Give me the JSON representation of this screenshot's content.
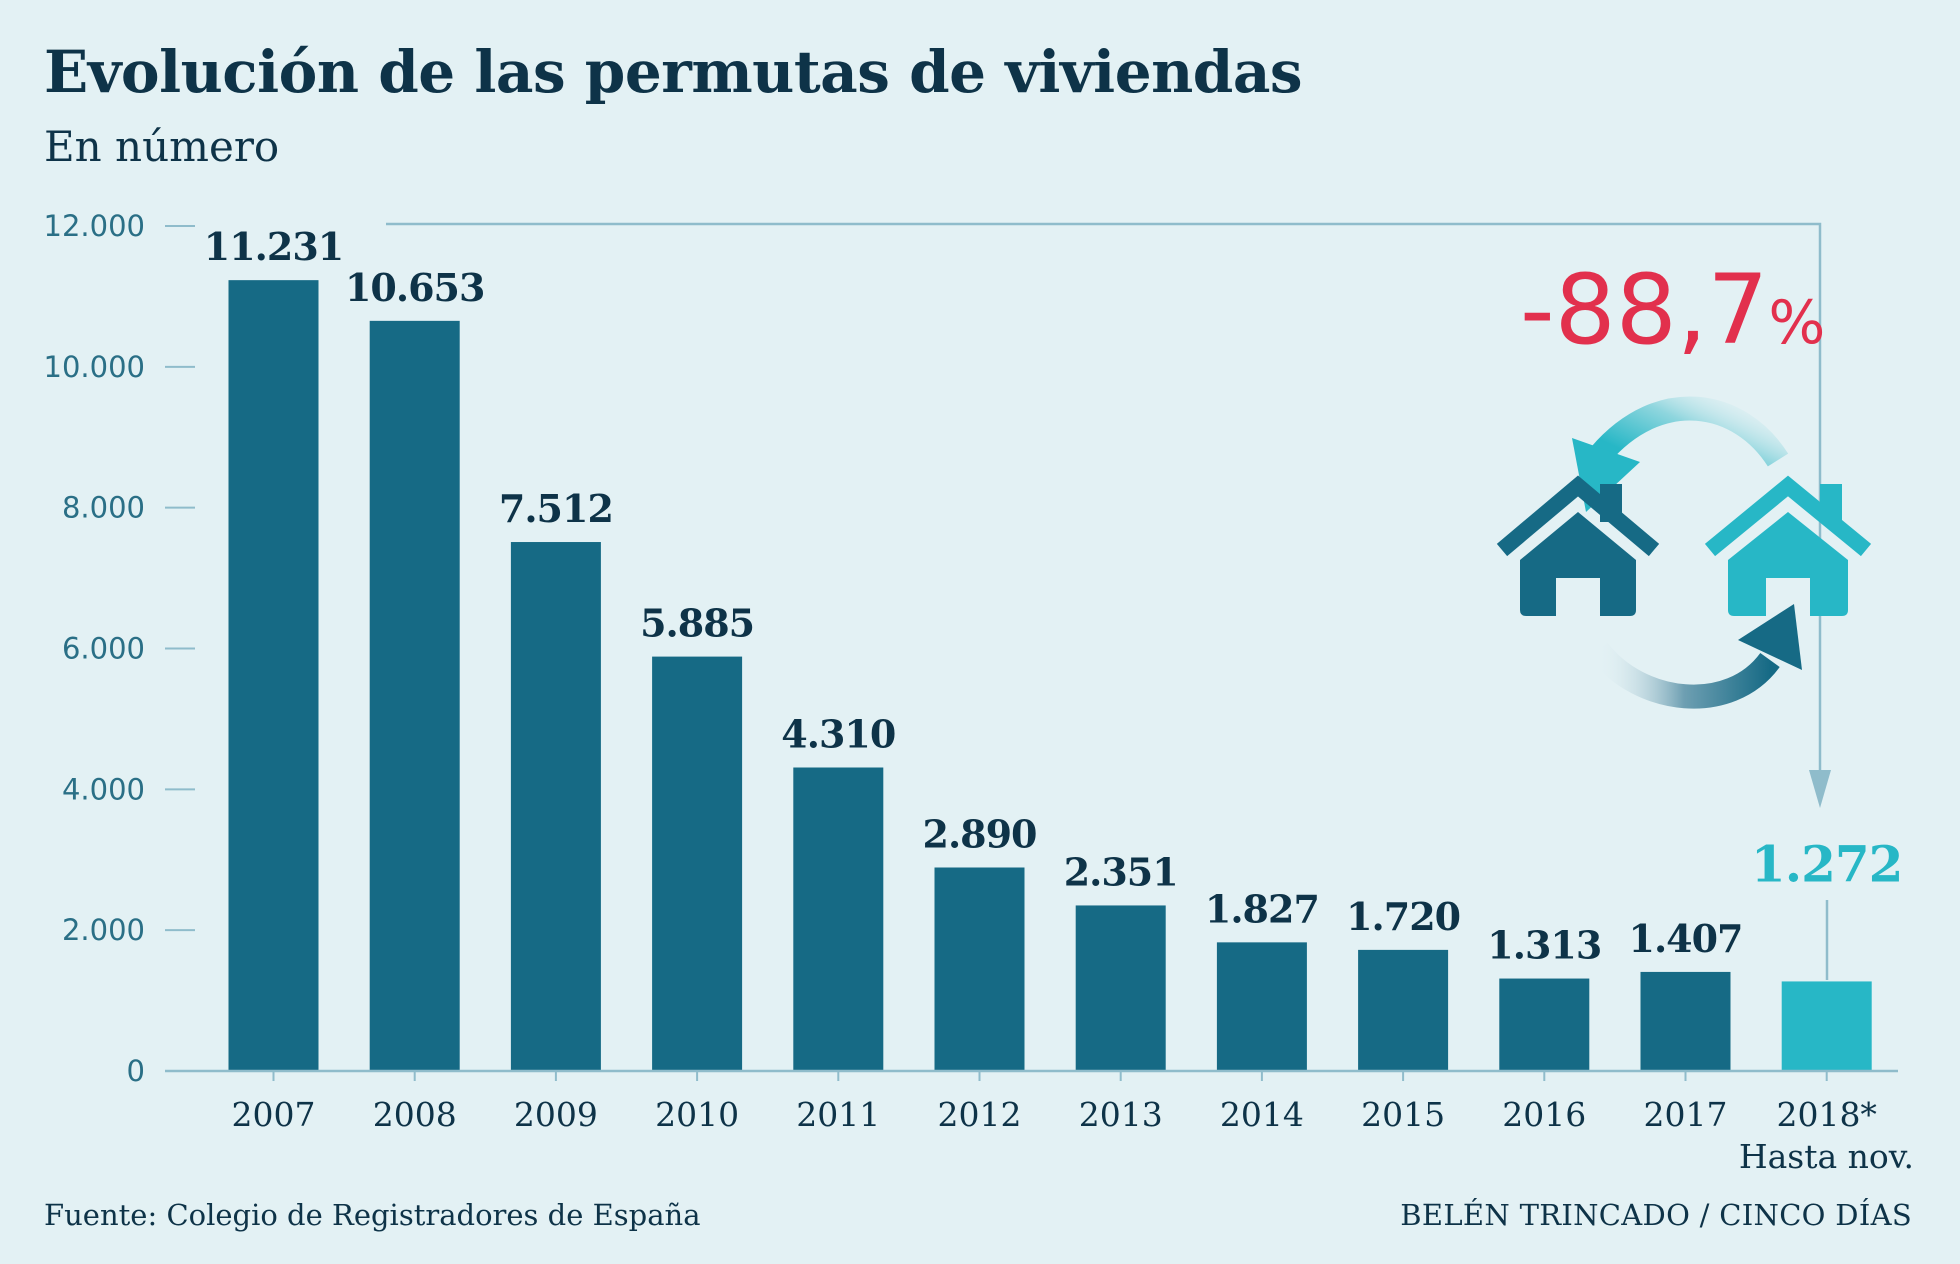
{
  "title": "Evolución de las permutas de viviendas",
  "subtitle": "En número",
  "footer": {
    "source": "Fuente: Colegio de Registradores de España",
    "credit": "BELÉN TRINCADO / CINCO DÍAS"
  },
  "annotation": {
    "change_number": "-88,7",
    "change_unit": "%",
    "icon": "house-exchange-icon"
  },
  "colors": {
    "bar": "#166a85",
    "highlight": "#27b7c6",
    "text": "#0e3348",
    "change": "#e2304d",
    "background": "#e3f1f4"
  },
  "chart_data": {
    "type": "bar",
    "title": "Evolución de las permutas de viviendas",
    "subtitle": "En número",
    "categories": [
      "2007",
      "2008",
      "2009",
      "2010",
      "2011",
      "2012",
      "2013",
      "2014",
      "2015",
      "2016",
      "2017",
      "2018*"
    ],
    "category_note": "Hasta nov.",
    "values": [
      11231,
      10653,
      7512,
      5885,
      4310,
      2890,
      2351,
      1827,
      1720,
      1313,
      1407,
      1272
    ],
    "value_labels": [
      "11.231",
      "10.653",
      "7.512",
      "5.885",
      "4.310",
      "2.890",
      "2.351",
      "1.827",
      "1.720",
      "1.313",
      "1.407",
      "1.272"
    ],
    "highlight_index": 11,
    "yticks": [
      0,
      2000,
      4000,
      6000,
      8000,
      10000,
      12000
    ],
    "ytick_labels": [
      "0",
      "2.000",
      "4.000",
      "6.000",
      "8.000",
      "10.000",
      "12.000"
    ],
    "ylim": [
      0,
      12000
    ],
    "xlabel": "",
    "ylabel": "",
    "grid": false
  }
}
